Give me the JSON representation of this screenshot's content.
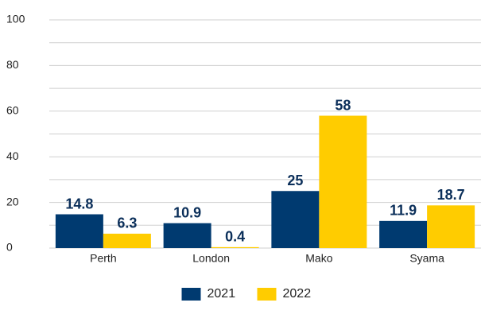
{
  "chart_data": {
    "type": "bar",
    "categories": [
      "Perth",
      "London",
      "Mako",
      "Syama"
    ],
    "series": [
      {
        "name": "2021",
        "color": "#003a70",
        "values": [
          14.8,
          10.9,
          25,
          11.9
        ]
      },
      {
        "name": "2022",
        "color": "#ffcc00",
        "values": [
          6.3,
          0.4,
          58,
          18.7
        ]
      }
    ],
    "ylim": [
      0,
      100
    ],
    "yticks": [
      0,
      20,
      40,
      60,
      80,
      100
    ],
    "minor_yticks": [
      10,
      30,
      50,
      70,
      90
    ],
    "grid": true,
    "legend": "bottom"
  }
}
